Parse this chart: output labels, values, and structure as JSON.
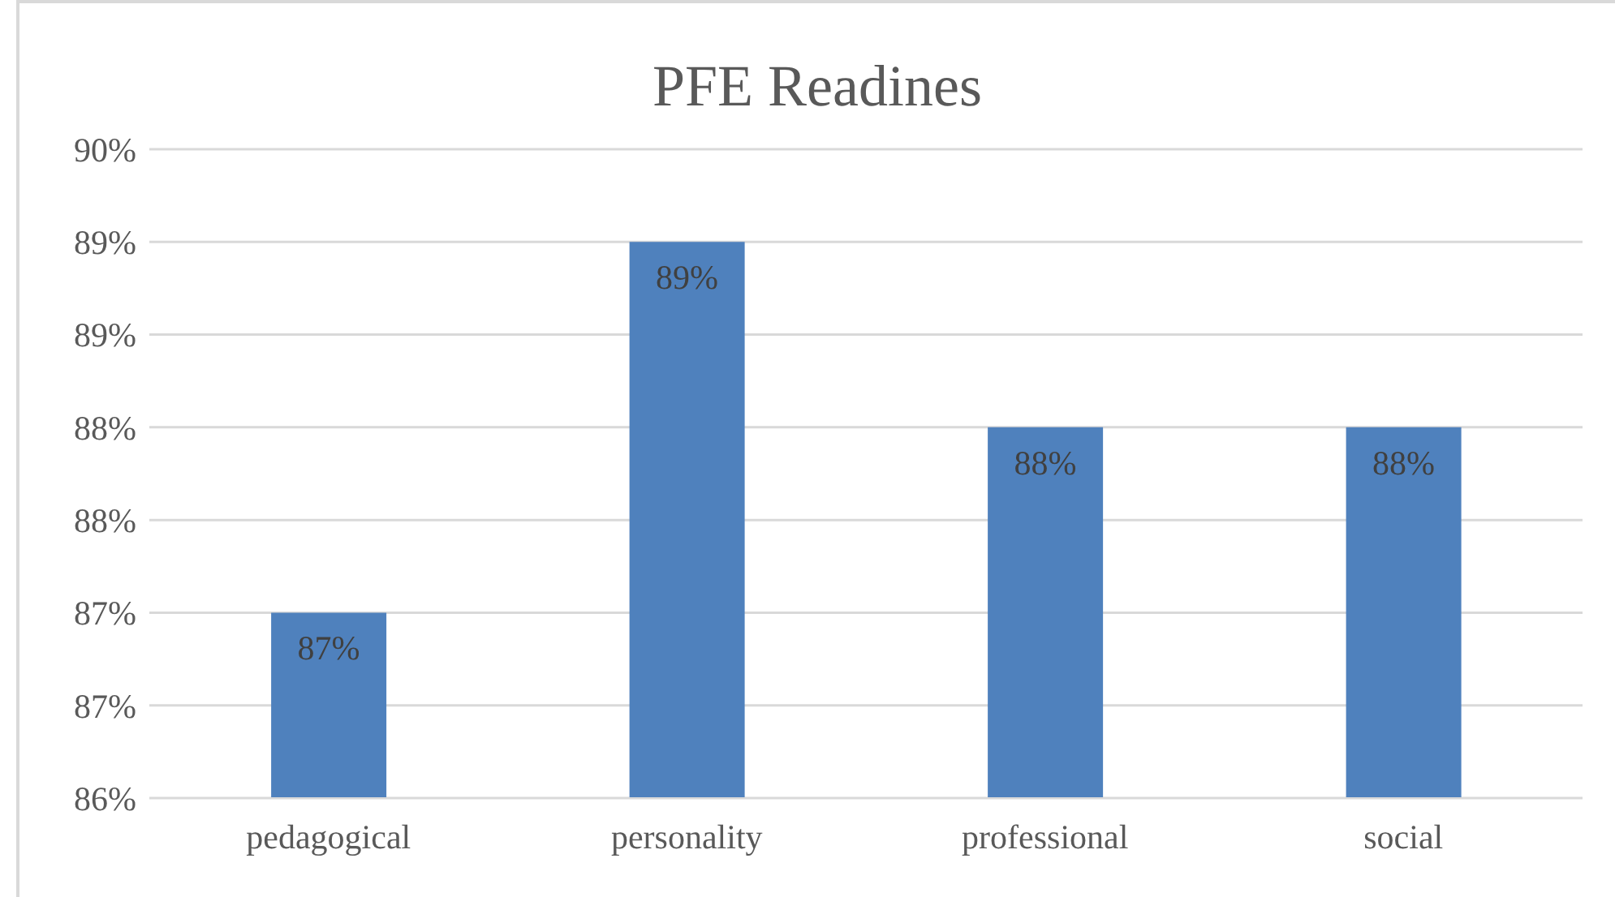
{
  "chart_data": {
    "type": "bar",
    "title": "PFE Readines",
    "categories": [
      "pedagogical",
      "personality",
      "professional",
      "social"
    ],
    "values": [
      87,
      89,
      88,
      88
    ],
    "color": "#4f81bd",
    "value_labels": [
      "87%",
      "89%",
      "88%",
      "88%"
    ],
    "ylim": [
      86,
      89.5
    ],
    "yticks": [
      {
        "value": 86,
        "label": "86%"
      },
      {
        "value": 86.5,
        "label": "87%"
      },
      {
        "value": 87,
        "label": "87%"
      },
      {
        "value": 87.5,
        "label": "88%"
      },
      {
        "value": 88,
        "label": "88%"
      },
      {
        "value": 88.5,
        "label": "89%"
      },
      {
        "value": 89,
        "label": "89%"
      },
      {
        "value": 89.5,
        "label": "90%"
      }
    ],
    "grid": "y"
  }
}
